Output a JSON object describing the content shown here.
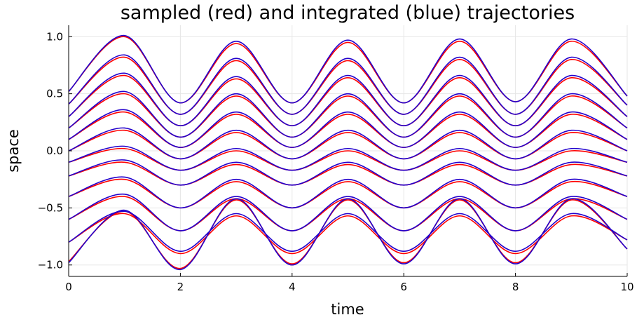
{
  "chart_data": {
    "type": "line",
    "title": "sampled (red) and integrated (blue) trajectories",
    "xlabel": "time",
    "ylabel": "space",
    "xlim": [
      0,
      10
    ],
    "ylim": [
      -1.1,
      1.1
    ],
    "xticks": [
      0,
      2,
      4,
      6,
      8,
      10
    ],
    "xtick_labels": [
      "0",
      "2",
      "4",
      "6",
      "8",
      "10"
    ],
    "yticks": [
      -1.0,
      -0.5,
      0.0,
      0.5,
      1.0
    ],
    "ytick_labels": [
      "−1.0",
      "−0.5",
      "0.0",
      "0.5",
      "1.0"
    ],
    "grid": true,
    "legend": "none",
    "colors": {
      "sampled": "#ff0000",
      "integrated": "#2200cc",
      "grid": "#e6e6e6",
      "axis": "#000000"
    },
    "series": [
      {
        "label": "sampled",
        "color": "#ff0000",
        "x": [
          0,
          1,
          2,
          3,
          4,
          5,
          6,
          7,
          8,
          9,
          10
        ],
        "trajectories": [
          [
            0.52,
            1.0,
            0.42,
            0.94,
            0.42,
            0.95,
            0.42,
            0.96,
            0.43,
            0.96,
            0.48
          ],
          [
            0.41,
            0.82,
            0.32,
            0.79,
            0.32,
            0.79,
            0.32,
            0.8,
            0.32,
            0.8,
            0.4
          ],
          [
            0.3,
            0.66,
            0.22,
            0.63,
            0.22,
            0.64,
            0.22,
            0.64,
            0.22,
            0.64,
            0.3
          ],
          [
            0.2,
            0.5,
            0.12,
            0.48,
            0.12,
            0.48,
            0.12,
            0.48,
            0.12,
            0.48,
            0.2
          ],
          [
            0.1,
            0.34,
            0.03,
            0.32,
            0.03,
            0.32,
            0.03,
            0.32,
            0.03,
            0.32,
            0.1
          ],
          [
            0.0,
            0.18,
            -0.07,
            0.16,
            -0.07,
            0.16,
            -0.07,
            0.16,
            -0.07,
            0.16,
            0.0
          ],
          [
            -0.1,
            0.02,
            -0.17,
            0.0,
            -0.17,
            0.0,
            -0.17,
            0.0,
            -0.17,
            0.0,
            -0.1
          ],
          [
            -0.22,
            -0.1,
            -0.3,
            -0.12,
            -0.3,
            -0.12,
            -0.3,
            -0.12,
            -0.3,
            -0.12,
            -0.22
          ],
          [
            -0.4,
            -0.25,
            -0.5,
            -0.27,
            -0.5,
            -0.27,
            -0.5,
            -0.27,
            -0.5,
            -0.27,
            -0.4
          ],
          [
            -0.6,
            -0.4,
            -0.7,
            -0.42,
            -0.7,
            -0.42,
            -0.7,
            -0.42,
            -0.7,
            -0.42,
            -0.6
          ],
          [
            -0.8,
            -0.55,
            -0.9,
            -0.57,
            -0.9,
            -0.57,
            -0.9,
            -0.57,
            -0.9,
            -0.57,
            -0.78
          ],
          [
            -0.97,
            -0.53,
            -1.03,
            -0.43,
            -0.99,
            -0.43,
            -0.98,
            -0.43,
            -0.98,
            -0.43,
            -0.86
          ]
        ]
      },
      {
        "label": "integrated",
        "color": "#2200cc",
        "x": [
          0,
          1,
          2,
          3,
          4,
          5,
          6,
          7,
          8,
          9,
          10
        ],
        "trajectories": [
          [
            0.52,
            1.01,
            0.42,
            0.96,
            0.42,
            0.97,
            0.42,
            0.98,
            0.43,
            0.98,
            0.48
          ],
          [
            0.41,
            0.84,
            0.32,
            0.81,
            0.32,
            0.81,
            0.32,
            0.82,
            0.32,
            0.82,
            0.4
          ],
          [
            0.3,
            0.68,
            0.22,
            0.65,
            0.22,
            0.66,
            0.22,
            0.66,
            0.22,
            0.66,
            0.3
          ],
          [
            0.2,
            0.52,
            0.12,
            0.5,
            0.12,
            0.5,
            0.12,
            0.5,
            0.12,
            0.5,
            0.2
          ],
          [
            0.1,
            0.36,
            0.03,
            0.34,
            0.03,
            0.34,
            0.03,
            0.34,
            0.03,
            0.34,
            0.1
          ],
          [
            0.0,
            0.2,
            -0.07,
            0.18,
            -0.07,
            0.18,
            -0.07,
            0.18,
            -0.07,
            0.18,
            0.0
          ],
          [
            -0.1,
            0.04,
            -0.17,
            0.02,
            -0.17,
            0.02,
            -0.17,
            0.02,
            -0.17,
            0.02,
            -0.1
          ],
          [
            -0.22,
            -0.08,
            -0.3,
            -0.1,
            -0.3,
            -0.1,
            -0.3,
            -0.1,
            -0.3,
            -0.1,
            -0.22
          ],
          [
            -0.4,
            -0.23,
            -0.5,
            -0.25,
            -0.5,
            -0.25,
            -0.5,
            -0.25,
            -0.5,
            -0.25,
            -0.4
          ],
          [
            -0.6,
            -0.38,
            -0.7,
            -0.4,
            -0.7,
            -0.4,
            -0.7,
            -0.4,
            -0.7,
            -0.4,
            -0.6
          ],
          [
            -0.8,
            -0.53,
            -0.88,
            -0.55,
            -0.88,
            -0.55,
            -0.88,
            -0.55,
            -0.88,
            -0.55,
            -0.78
          ],
          [
            -0.98,
            -0.52,
            -1.04,
            -0.42,
            -1.0,
            -0.42,
            -0.99,
            -0.42,
            -0.99,
            -0.42,
            -0.86
          ]
        ]
      }
    ]
  }
}
